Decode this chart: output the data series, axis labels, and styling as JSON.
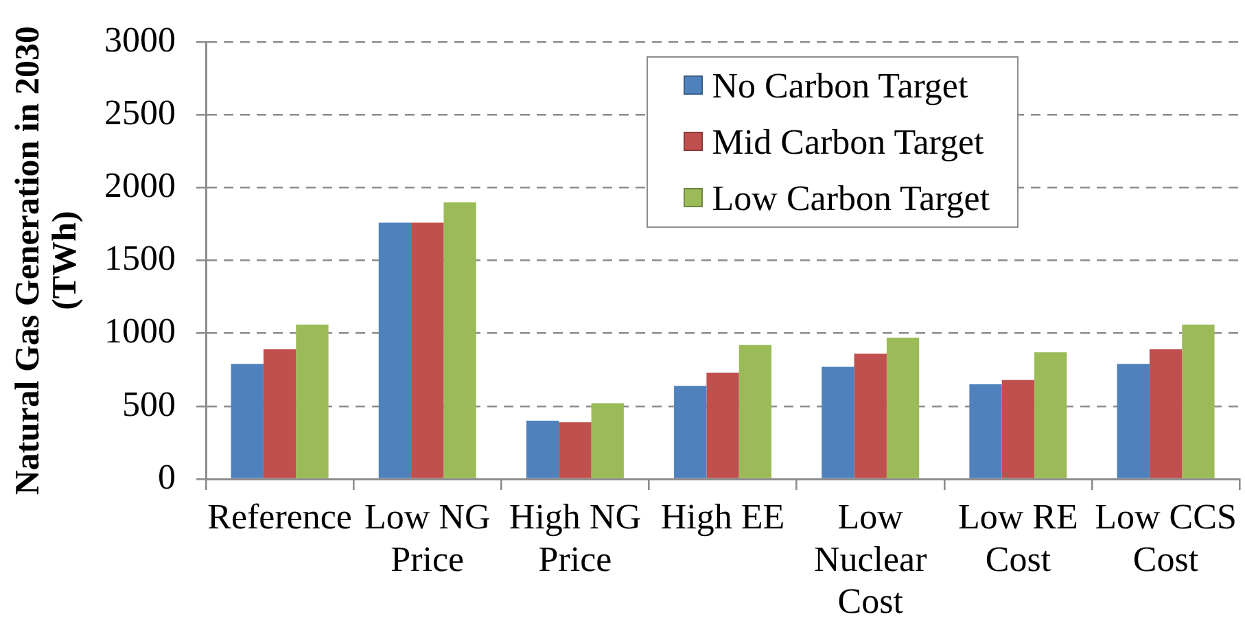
{
  "chart_data": {
    "type": "bar",
    "ylabel": "Natural Gas Generation in 2030 (TWh)",
    "categories": [
      "Reference",
      "Low NG Price",
      "High NG Price",
      "High EE",
      "Low Nuclear Cost",
      "Low RE Cost",
      "Low CCS Cost"
    ],
    "series": [
      {
        "name": "No Carbon Target",
        "color": "#4f81bd",
        "values": [
          790,
          1760,
          400,
          640,
          770,
          650,
          790
        ]
      },
      {
        "name": "Mid Carbon Target",
        "color": "#c0504d",
        "values": [
          890,
          1760,
          390,
          730,
          860,
          680,
          890
        ]
      },
      {
        "name": "Low Carbon Target",
        "color": "#9bbb59",
        "values": [
          1060,
          1900,
          520,
          920,
          970,
          870,
          1060
        ]
      }
    ],
    "ylim": [
      0,
      3000
    ],
    "yticks": [
      0,
      500,
      1000,
      1500,
      2000,
      2500,
      3000
    ],
    "grid": "y",
    "legend": "top right"
  }
}
